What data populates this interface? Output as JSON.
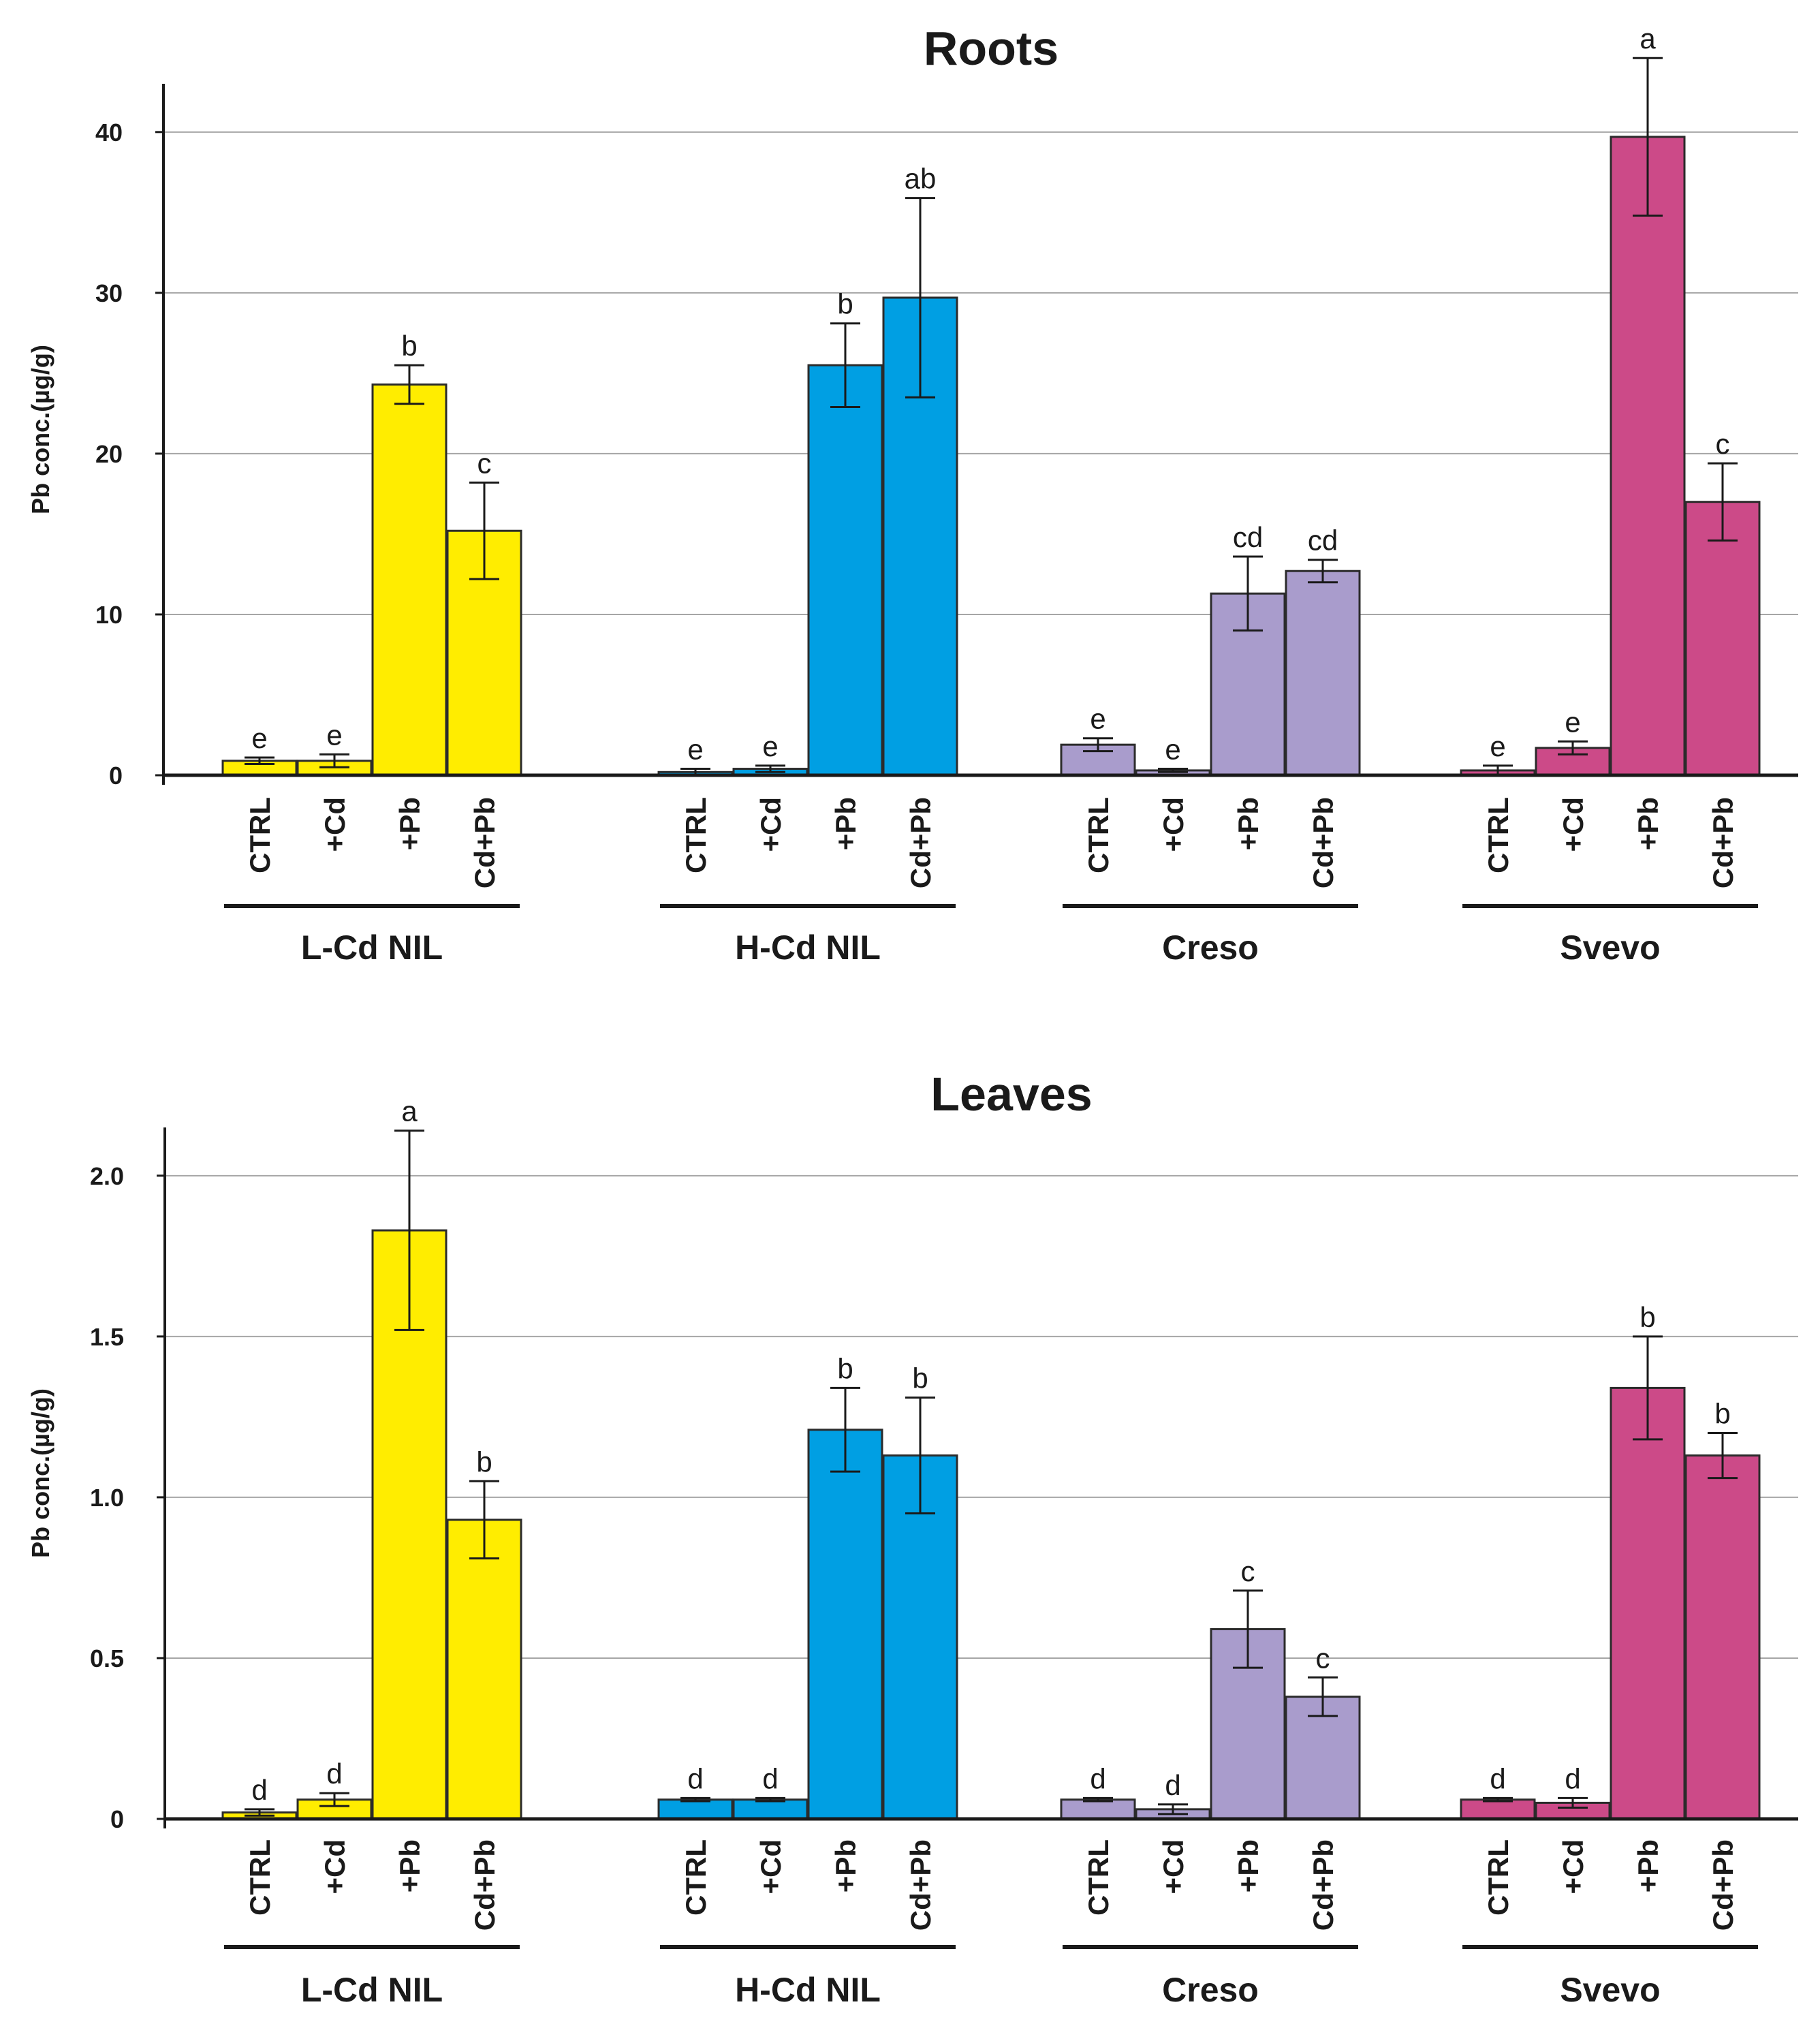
{
  "chart_data": [
    {
      "type": "bar",
      "title": "Roots",
      "ylabel": "Pb conc.(µg/g)",
      "xlabel": "",
      "ylim": [
        0,
        43
      ],
      "yticks": [
        "0",
        "10",
        "20",
        "30",
        "40"
      ],
      "ytick_values": [
        0,
        10,
        20,
        30,
        40
      ],
      "treatments": [
        "CTRL",
        "+Cd",
        "+Pb",
        "Cd+Pb"
      ],
      "groups": [
        {
          "name": "L-Cd NIL",
          "color": "#ffed00",
          "values": [
            0.9,
            0.9,
            24.3,
            15.2
          ],
          "errors": [
            0.2,
            0.4,
            1.2,
            3.0
          ],
          "letters": [
            "e",
            "e",
            "b",
            "c"
          ]
        },
        {
          "name": "H-Cd NIL",
          "color": "#009fe3",
          "values": [
            0.2,
            0.4,
            25.5,
            29.7
          ],
          "errors": [
            0.2,
            0.2,
            2.6,
            6.2
          ],
          "letters": [
            "e",
            "e",
            "b",
            "ab"
          ]
        },
        {
          "name": "Creso",
          "color": "#a99ccc",
          "values": [
            1.9,
            0.3,
            11.3,
            12.7
          ],
          "errors": [
            0.4,
            0.1,
            2.3,
            0.7
          ],
          "letters": [
            "e",
            "e",
            "cd",
            "cd"
          ]
        },
        {
          "name": "Svevo",
          "color": "#cc4a88",
          "values": [
            0.3,
            1.7,
            39.7,
            17.0
          ],
          "errors": [
            0.3,
            0.4,
            4.9,
            2.4
          ],
          "letters": [
            "e",
            "e",
            "a",
            "c"
          ]
        }
      ]
    },
    {
      "type": "bar",
      "title": "Leaves",
      "ylabel": "Pb conc.(µg/g)",
      "xlabel": "",
      "ylim": [
        0,
        2.15
      ],
      "yticks": [
        "0",
        "0.5",
        "1.0",
        "1.5",
        "2.0"
      ],
      "ytick_values": [
        0,
        0.5,
        1.0,
        1.5,
        2.0
      ],
      "treatments": [
        "CTRL",
        "+Cd",
        "+Pb",
        "Cd+Pb"
      ],
      "groups": [
        {
          "name": "L-Cd NIL",
          "color": "#ffed00",
          "values": [
            0.02,
            0.06,
            1.83,
            0.93
          ],
          "errors": [
            0.01,
            0.02,
            0.31,
            0.12
          ],
          "letters": [
            "d",
            "d",
            "a",
            "b"
          ]
        },
        {
          "name": "H-Cd NIL",
          "color": "#009fe3",
          "values": [
            0.06,
            0.06,
            1.21,
            1.13
          ],
          "errors": [
            0.005,
            0.005,
            0.13,
            0.18
          ],
          "letters": [
            "d",
            "d",
            "b",
            "b"
          ]
        },
        {
          "name": "Creso",
          "color": "#a99ccc",
          "values": [
            0.06,
            0.03,
            0.59,
            0.38
          ],
          "errors": [
            0.005,
            0.015,
            0.12,
            0.06
          ],
          "letters": [
            "d",
            "d",
            "c",
            "c"
          ]
        },
        {
          "name": "Svevo",
          "color": "#cc4a88",
          "values": [
            0.06,
            0.05,
            1.34,
            1.13
          ],
          "errors": [
            0.005,
            0.015,
            0.16,
            0.07
          ],
          "letters": [
            "d",
            "d",
            "b",
            "b"
          ]
        }
      ]
    }
  ]
}
